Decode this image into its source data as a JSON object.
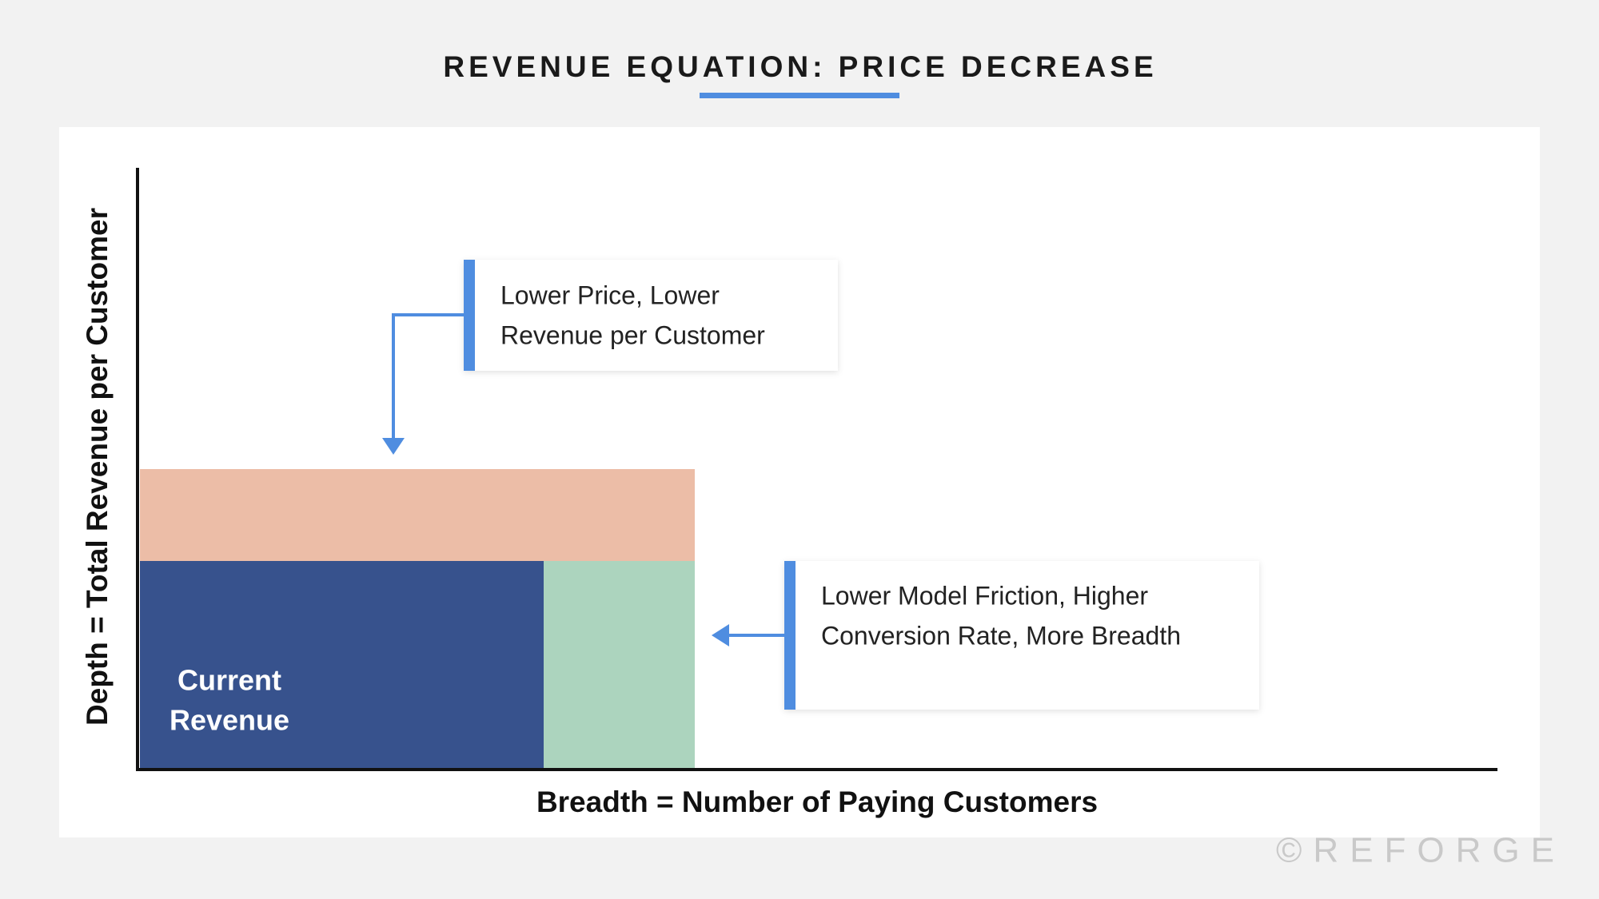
{
  "title": "REVENUE EQUATION: PRICE DECREASE",
  "y_axis_label": "Depth = Total Revenue per Customer",
  "x_axis_label": "Breadth = Number of Paying Customers",
  "block_label": [
    "Current",
    "Revenue"
  ],
  "callouts": [
    {
      "lines": [
        "Lower Price, Lower",
        "Revenue per Customer"
      ]
    },
    {
      "lines": [
        "Lower Model Friction, Higher",
        "Conversion Rate, More Breadth"
      ]
    }
  ],
  "watermark": "©REFORGE"
}
